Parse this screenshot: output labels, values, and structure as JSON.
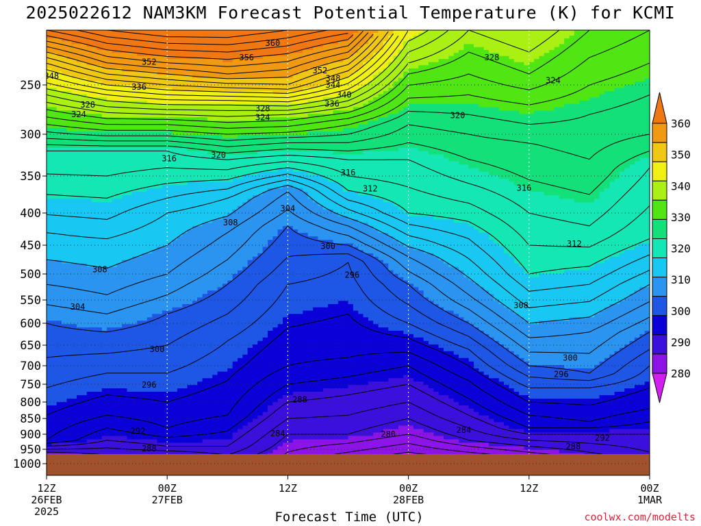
{
  "title": "2025022612 NAM3KM Forecast Potential Temperature (K) for KCMI",
  "xlabel": "Forecast Time (UTC)",
  "credit": "coolwx.com/modelts",
  "chart_data": {
    "type": "contour",
    "title": "2025022612 NAM3KM Forecast Potential Temperature (K) for KCMI",
    "xlabel": "Forecast Time (UTC)",
    "ylabel": "",
    "x_range_hours": [
      0,
      60
    ],
    "y_range_hPa": [
      1000,
      200
    ],
    "y_ticks": [
      "250",
      "300",
      "350",
      "400",
      "450",
      "500",
      "550",
      "600",
      "650",
      "700",
      "750",
      "800",
      "850",
      "900",
      "950",
      "1000"
    ],
    "x_ticks": [
      {
        "hour": 0,
        "lines": [
          "12Z",
          "26FEB",
          "2025"
        ]
      },
      {
        "hour": 12,
        "lines": [
          "00Z",
          "27FEB"
        ]
      },
      {
        "hour": 24,
        "lines": [
          "12Z"
        ]
      },
      {
        "hour": 36,
        "lines": [
          "00Z",
          "28FEB"
        ]
      },
      {
        "hour": 48,
        "lines": [
          "12Z"
        ]
      },
      {
        "hour": 60,
        "lines": [
          "00Z",
          "1MAR"
        ]
      }
    ],
    "grid": true,
    "colorbar": {
      "labels": [
        "280",
        "290",
        "300",
        "310",
        "320",
        "330",
        "340",
        "350",
        "360"
      ],
      "colors": [
        "#d21ef0",
        "#8c14e6",
        "#3c10dc",
        "#0a00d8",
        "#1e56e6",
        "#2a94f0",
        "#19c8f2",
        "#14e6b4",
        "#14e07a",
        "#50e614",
        "#aaf014",
        "#f0f014",
        "#f0c814",
        "#f09a14",
        "#f07814"
      ],
      "placement": "right"
    },
    "contour_interval_K": 2,
    "terrain_color": "#a0522d",
    "profiles": [
      {
        "hour": 0,
        "levels": [
          [
            970,
            282
          ],
          [
            920,
            292
          ],
          [
            840,
            294
          ],
          [
            680,
            298
          ],
          [
            600,
            300
          ],
          [
            520,
            304
          ],
          [
            430,
            308
          ],
          [
            320,
            316
          ],
          [
            290,
            324
          ],
          [
            260,
            332
          ],
          [
            230,
            342
          ],
          [
            200,
            354
          ]
        ]
      },
      {
        "hour": 6,
        "levels": [
          [
            970,
            284
          ],
          [
            920,
            288
          ],
          [
            840,
            292
          ],
          [
            720,
            296
          ],
          [
            620,
            300
          ],
          [
            540,
            304
          ],
          [
            440,
            308
          ],
          [
            320,
            316
          ],
          [
            290,
            326
          ],
          [
            260,
            336
          ],
          [
            230,
            348
          ],
          [
            200,
            358
          ]
        ]
      },
      {
        "hour": 12,
        "levels": [
          [
            970,
            284
          ],
          [
            940,
            288
          ],
          [
            880,
            292
          ],
          [
            720,
            296
          ],
          [
            580,
            300
          ],
          [
            500,
            304
          ],
          [
            400,
            308
          ],
          [
            320,
            316
          ],
          [
            290,
            326
          ],
          [
            260,
            338
          ],
          [
            230,
            350
          ],
          [
            200,
            360
          ]
        ]
      },
      {
        "hour": 18,
        "levels": [
          [
            970,
            286
          ],
          [
            940,
            288
          ],
          [
            840,
            292
          ],
          [
            640,
            296
          ],
          [
            520,
            300
          ],
          [
            430,
            304
          ],
          [
            380,
            308
          ],
          [
            330,
            316
          ],
          [
            300,
            324
          ],
          [
            270,
            334
          ],
          [
            240,
            348
          ],
          [
            200,
            360
          ]
        ]
      },
      {
        "hour": 24,
        "levels": [
          [
            960,
            282
          ],
          [
            900,
            284
          ],
          [
            800,
            288
          ],
          [
            700,
            292
          ],
          [
            520,
            296
          ],
          [
            420,
            300
          ],
          [
            370,
            304
          ],
          [
            340,
            312
          ],
          [
            310,
            320
          ],
          [
            280,
            330
          ],
          [
            250,
            344
          ],
          [
            200,
            358
          ]
        ]
      },
      {
        "hour": 30,
        "levels": [
          [
            960,
            280
          ],
          [
            900,
            284
          ],
          [
            780,
            288
          ],
          [
            680,
            292
          ],
          [
            480,
            296
          ],
          [
            450,
            300
          ],
          [
            420,
            304
          ],
          [
            370,
            312
          ],
          [
            330,
            316
          ],
          [
            290,
            324
          ],
          [
            260,
            334
          ],
          [
            220,
            348
          ]
        ]
      },
      {
        "hour": 36,
        "levels": [
          [
            960,
            278
          ],
          [
            900,
            282
          ],
          [
            800,
            286
          ],
          [
            700,
            290
          ],
          [
            600,
            296
          ],
          [
            520,
            300
          ],
          [
            470,
            304
          ],
          [
            400,
            312
          ],
          [
            330,
            316
          ],
          [
            290,
            320
          ],
          [
            250,
            326
          ],
          [
            200,
            336
          ]
        ]
      },
      {
        "hour": 42,
        "levels": [
          [
            960,
            280
          ],
          [
            920,
            284
          ],
          [
            840,
            288
          ],
          [
            740,
            292
          ],
          [
            660,
            296
          ],
          [
            600,
            300
          ],
          [
            540,
            304
          ],
          [
            440,
            310
          ],
          [
            360,
            316
          ],
          [
            300,
            320
          ],
          [
            260,
            324
          ],
          [
            200,
            330
          ]
        ]
      },
      {
        "hour": 48,
        "levels": [
          [
            960,
            282
          ],
          [
            920,
            286
          ],
          [
            880,
            290
          ],
          [
            760,
            296
          ],
          [
            700,
            300
          ],
          [
            600,
            306
          ],
          [
            500,
            312
          ],
          [
            400,
            316
          ],
          [
            310,
            320
          ],
          [
            270,
            324
          ],
          [
            240,
            328
          ],
          [
            200,
            332
          ]
        ]
      },
      {
        "hour": 54,
        "levels": [
          [
            960,
            284
          ],
          [
            900,
            288
          ],
          [
            860,
            292
          ],
          [
            760,
            296
          ],
          [
            720,
            300
          ],
          [
            620,
            304
          ],
          [
            520,
            310
          ],
          [
            420,
            316
          ],
          [
            330,
            320
          ],
          [
            280,
            322
          ],
          [
            250,
            324
          ],
          [
            200,
            328
          ]
        ]
      },
      {
        "hour": 60,
        "levels": [
          [
            960,
            286
          ],
          [
            900,
            288
          ],
          [
            820,
            292
          ],
          [
            700,
            296
          ],
          [
            620,
            300
          ],
          [
            520,
            306
          ],
          [
            440,
            312
          ],
          [
            340,
            316
          ],
          [
            300,
            320
          ],
          [
            260,
            322
          ],
          [
            230,
            324
          ],
          [
            200,
            326
          ]
        ]
      }
    ],
    "contour_labels": [
      {
        "text": "360",
        "hour": 22.5,
        "p": 212
      },
      {
        "text": "356",
        "hour": 19.9,
        "p": 225
      },
      {
        "text": "352",
        "hour": 10.2,
        "p": 229
      },
      {
        "text": "352",
        "hour": 27.2,
        "p": 237
      },
      {
        "text": "348",
        "hour": 0.5,
        "p": 242
      },
      {
        "text": "348",
        "hour": 28.5,
        "p": 244
      },
      {
        "text": "344",
        "hour": 28.5,
        "p": 250
      },
      {
        "text": "340",
        "hour": 29.6,
        "p": 260
      },
      {
        "text": "336",
        "hour": 9.2,
        "p": 252
      },
      {
        "text": "336",
        "hour": 28.4,
        "p": 269
      },
      {
        "text": "328",
        "hour": 4.1,
        "p": 270
      },
      {
        "text": "324",
        "hour": 3.2,
        "p": 280
      },
      {
        "text": "328",
        "hour": 21.5,
        "p": 274
      },
      {
        "text": "324",
        "hour": 21.5,
        "p": 283
      },
      {
        "text": "328",
        "hour": 44.3,
        "p": 225
      },
      {
        "text": "324",
        "hour": 50.4,
        "p": 246
      },
      {
        "text": "320",
        "hour": 40.9,
        "p": 281
      },
      {
        "text": "320",
        "hour": 17.1,
        "p": 325
      },
      {
        "text": "316",
        "hour": 12.2,
        "p": 329
      },
      {
        "text": "316",
        "hour": 30.0,
        "p": 346
      },
      {
        "text": "312",
        "hour": 32.2,
        "p": 367
      },
      {
        "text": "316",
        "hour": 47.5,
        "p": 366
      },
      {
        "text": "304",
        "hour": 24.0,
        "p": 394
      },
      {
        "text": "308",
        "hour": 18.3,
        "p": 415
      },
      {
        "text": "300",
        "hour": 28.0,
        "p": 452
      },
      {
        "text": "312",
        "hour": 52.5,
        "p": 448
      },
      {
        "text": "308",
        "hour": 5.3,
        "p": 492
      },
      {
        "text": "296",
        "hour": 30.4,
        "p": 502
      },
      {
        "text": "304",
        "hour": 3.1,
        "p": 565
      },
      {
        "text": "308",
        "hour": 47.2,
        "p": 562
      },
      {
        "text": "300",
        "hour": 11.0,
        "p": 660
      },
      {
        "text": "300",
        "hour": 52.1,
        "p": 681
      },
      {
        "text": "296",
        "hour": 51.2,
        "p": 723
      },
      {
        "text": "296",
        "hour": 10.2,
        "p": 752
      },
      {
        "text": "288",
        "hour": 25.2,
        "p": 793
      },
      {
        "text": "292",
        "hour": 9.1,
        "p": 890
      },
      {
        "text": "284",
        "hour": 23.0,
        "p": 898
      },
      {
        "text": "284",
        "hour": 41.5,
        "p": 887
      },
      {
        "text": "280",
        "hour": 34.0,
        "p": 900
      },
      {
        "text": "292",
        "hour": 55.3,
        "p": 912
      },
      {
        "text": "288",
        "hour": 10.2,
        "p": 948
      },
      {
        "text": "288",
        "hour": 52.4,
        "p": 941
      }
    ]
  }
}
